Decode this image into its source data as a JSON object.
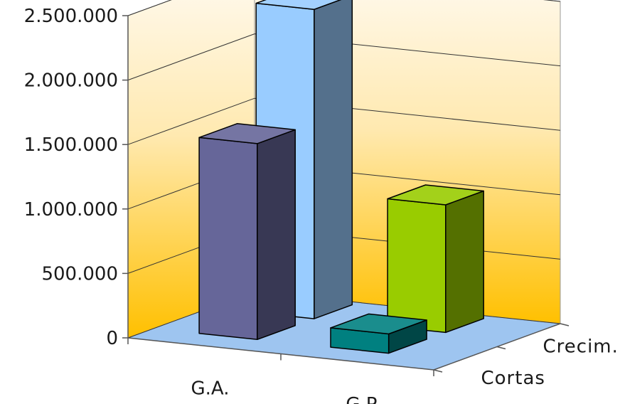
{
  "chart_data": {
    "type": "bar",
    "subtype": "3d-column",
    "categories": [
      "G.A.",
      "G.P."
    ],
    "series": [
      {
        "name": "Cortas",
        "values": [
          1520000,
          150000
        ]
      },
      {
        "name": "Crecim.",
        "values": [
          2400000,
          990000
        ]
      }
    ],
    "y_ticks": [
      "2.500.000",
      "2.000.000",
      "1.500.000",
      "1.000.000",
      "500.000",
      "0"
    ],
    "ylim": [
      0,
      2500000
    ],
    "grid": true,
    "legend": "none",
    "colors": {
      "cortas_ga": "#666699",
      "crecim_ga": "#99ccff",
      "cortas_gp": "#008080",
      "crecim_gp": "#99cc00",
      "wall_top": "#fffaf0",
      "wall_bottom": "#ffc000",
      "floor": "#9ec5f0"
    }
  }
}
